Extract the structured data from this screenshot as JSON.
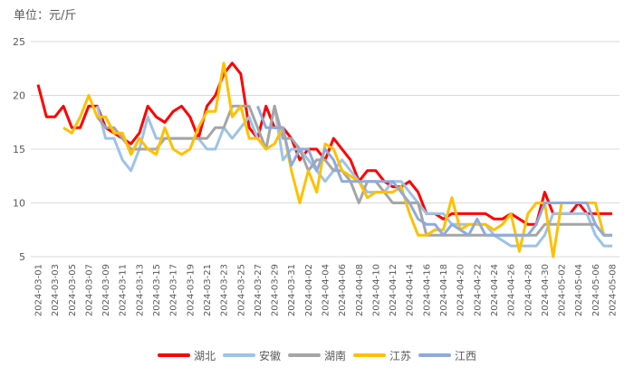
{
  "unit_label": "单位：元/斤",
  "chart_data": {
    "type": "line",
    "title": "",
    "ylabel": "单位：元/斤",
    "xlabel": "",
    "ylim": [
      5,
      25
    ],
    "yticks": [
      5,
      10,
      15,
      20,
      25
    ],
    "grid": true,
    "legend_position": "bottom",
    "x": [
      "2024-03-01",
      "2024-03-02",
      "2024-03-03",
      "2024-03-04",
      "2024-03-05",
      "2024-03-06",
      "2024-03-07",
      "2024-03-08",
      "2024-03-09",
      "2024-03-10",
      "2024-03-11",
      "2024-03-12",
      "2024-03-13",
      "2024-03-14",
      "2024-03-15",
      "2024-03-16",
      "2024-03-17",
      "2024-03-18",
      "2024-03-19",
      "2024-03-20",
      "2024-03-21",
      "2024-03-22",
      "2024-03-23",
      "2024-03-24",
      "2024-03-25",
      "2024-03-26",
      "2024-03-27",
      "2024-03-28",
      "2024-03-29",
      "2024-03-30",
      "2024-03-31",
      "2024-04-01",
      "2024-04-02",
      "2024-04-03",
      "2024-04-04",
      "2024-04-05",
      "2024-04-06",
      "2024-04-07",
      "2024-04-08",
      "2024-04-09",
      "2024-04-10",
      "2024-04-11",
      "2024-04-12",
      "2024-04-13",
      "2024-04-14",
      "2024-04-15",
      "2024-04-16",
      "2024-04-17",
      "2024-04-18",
      "2024-04-19",
      "2024-04-20",
      "2024-04-21",
      "2024-04-22",
      "2024-04-23",
      "2024-04-24",
      "2024-04-25",
      "2024-04-26",
      "2024-04-27",
      "2024-04-28",
      "2024-04-29",
      "2024-04-30",
      "2024-05-01",
      "2024-05-02",
      "2024-05-03",
      "2024-05-04",
      "2024-05-05",
      "2024-05-06",
      "2024-05-07",
      "2024-05-08"
    ],
    "xtick_labels": [
      "2024-03-01",
      "2024-03-03",
      "2024-03-05",
      "2024-03-07",
      "2024-03-09",
      "2024-03-11",
      "2024-03-13",
      "2024-03-15",
      "2024-03-17",
      "2024-03-19",
      "2024-03-21",
      "2024-03-23",
      "2024-03-25",
      "2024-03-27",
      "2024-03-29",
      "2024-03-31",
      "2024-04-02",
      "2024-04-04",
      "2024-04-06",
      "2024-04-08",
      "2024-04-10",
      "2024-04-12",
      "2024-04-14",
      "2024-04-16",
      "2024-04-18",
      "2024-04-20",
      "2024-04-22",
      "2024-04-24",
      "2024-04-26",
      "2024-04-28",
      "2024-04-30",
      "2024-05-02",
      "2024-05-04",
      "2024-05-06",
      "2024-05-08"
    ],
    "series": [
      {
        "name": "湖北",
        "color": "#FF0000",
        "values": [
          21,
          18,
          18,
          19,
          17,
          17,
          19,
          19,
          17,
          16.5,
          16,
          15.5,
          16.5,
          19,
          18,
          17.5,
          18.5,
          19,
          18,
          16,
          19,
          20,
          22,
          23,
          22,
          17,
          16,
          19,
          17,
          17,
          16,
          14,
          15,
          15,
          14,
          16,
          15,
          14,
          12,
          13,
          13,
          12,
          11.5,
          11.5,
          12,
          11,
          9,
          9,
          8.5,
          9,
          9,
          9,
          9,
          9,
          8.5,
          8.5,
          9,
          8.5,
          8,
          8,
          11,
          9,
          9,
          9,
          10,
          9,
          9,
          9,
          9
        ]
      },
      {
        "name": "安徽",
        "color": "#9DC3E6",
        "values": [
          null,
          null,
          null,
          null,
          null,
          null,
          null,
          19,
          16,
          16,
          14,
          13,
          15,
          18,
          16,
          16,
          16,
          16,
          16,
          16,
          15,
          15,
          17,
          16,
          17,
          18,
          16,
          15,
          19,
          14,
          15,
          15,
          14,
          13,
          12,
          13,
          14,
          13,
          12,
          11,
          11,
          11,
          12,
          12,
          11,
          10,
          9,
          9,
          9,
          8,
          8,
          8,
          8,
          8,
          7,
          6.5,
          6,
          6,
          6,
          6,
          7,
          9,
          9,
          9,
          9,
          9,
          7,
          6,
          6
        ]
      },
      {
        "name": "湖南",
        "color": "#A5A5A5",
        "values": [
          null,
          null,
          null,
          null,
          null,
          null,
          null,
          18,
          17,
          17,
          16,
          15,
          15,
          15,
          15,
          16,
          16,
          16,
          16,
          16,
          16,
          17,
          17,
          19,
          19,
          19,
          17,
          15,
          19,
          16,
          16,
          15,
          13,
          14,
          14,
          13,
          13,
          12,
          10,
          12,
          12,
          11,
          10,
          10,
          10,
          10,
          7,
          7,
          7,
          7,
          7,
          7,
          7,
          7,
          7,
          7,
          7,
          7,
          7,
          7,
          8,
          8,
          8,
          8,
          8,
          8,
          8,
          7,
          7
        ]
      },
      {
        "name": "江苏",
        "color": "#FFC000",
        "values": [
          null,
          null,
          null,
          17,
          16.5,
          18,
          20,
          18,
          18,
          16.5,
          16.5,
          14.5,
          16,
          15,
          14.5,
          17,
          15,
          14.5,
          15,
          17,
          18.5,
          18.5,
          23,
          18,
          19,
          16,
          16,
          15,
          15.5,
          17,
          13,
          10,
          13,
          11,
          15.5,
          15,
          13,
          12.5,
          12,
          10.5,
          11,
          11,
          11,
          11.5,
          9,
          7,
          7,
          7.5,
          7.5,
          10.5,
          7.5,
          8,
          8,
          8,
          7.5,
          8,
          9,
          5.5,
          9,
          10,
          10,
          5,
          10,
          10,
          10,
          10,
          10,
          7,
          7
        ]
      },
      {
        "name": "江西",
        "color": "#8FAADC",
        "values": [
          null,
          null,
          null,
          null,
          null,
          null,
          null,
          null,
          null,
          null,
          null,
          null,
          null,
          null,
          null,
          null,
          null,
          null,
          null,
          null,
          null,
          null,
          null,
          null,
          null,
          null,
          19,
          17,
          17,
          17,
          13.5,
          15,
          15,
          13,
          15,
          14,
          12,
          12,
          12,
          12,
          12,
          12,
          12,
          11,
          10,
          8.5,
          8,
          8,
          7,
          8,
          7.5,
          7,
          8.5,
          7,
          7,
          7,
          7,
          7,
          7,
          8,
          10,
          10,
          10,
          10,
          10,
          10,
          8,
          7,
          7
        ]
      }
    ]
  }
}
